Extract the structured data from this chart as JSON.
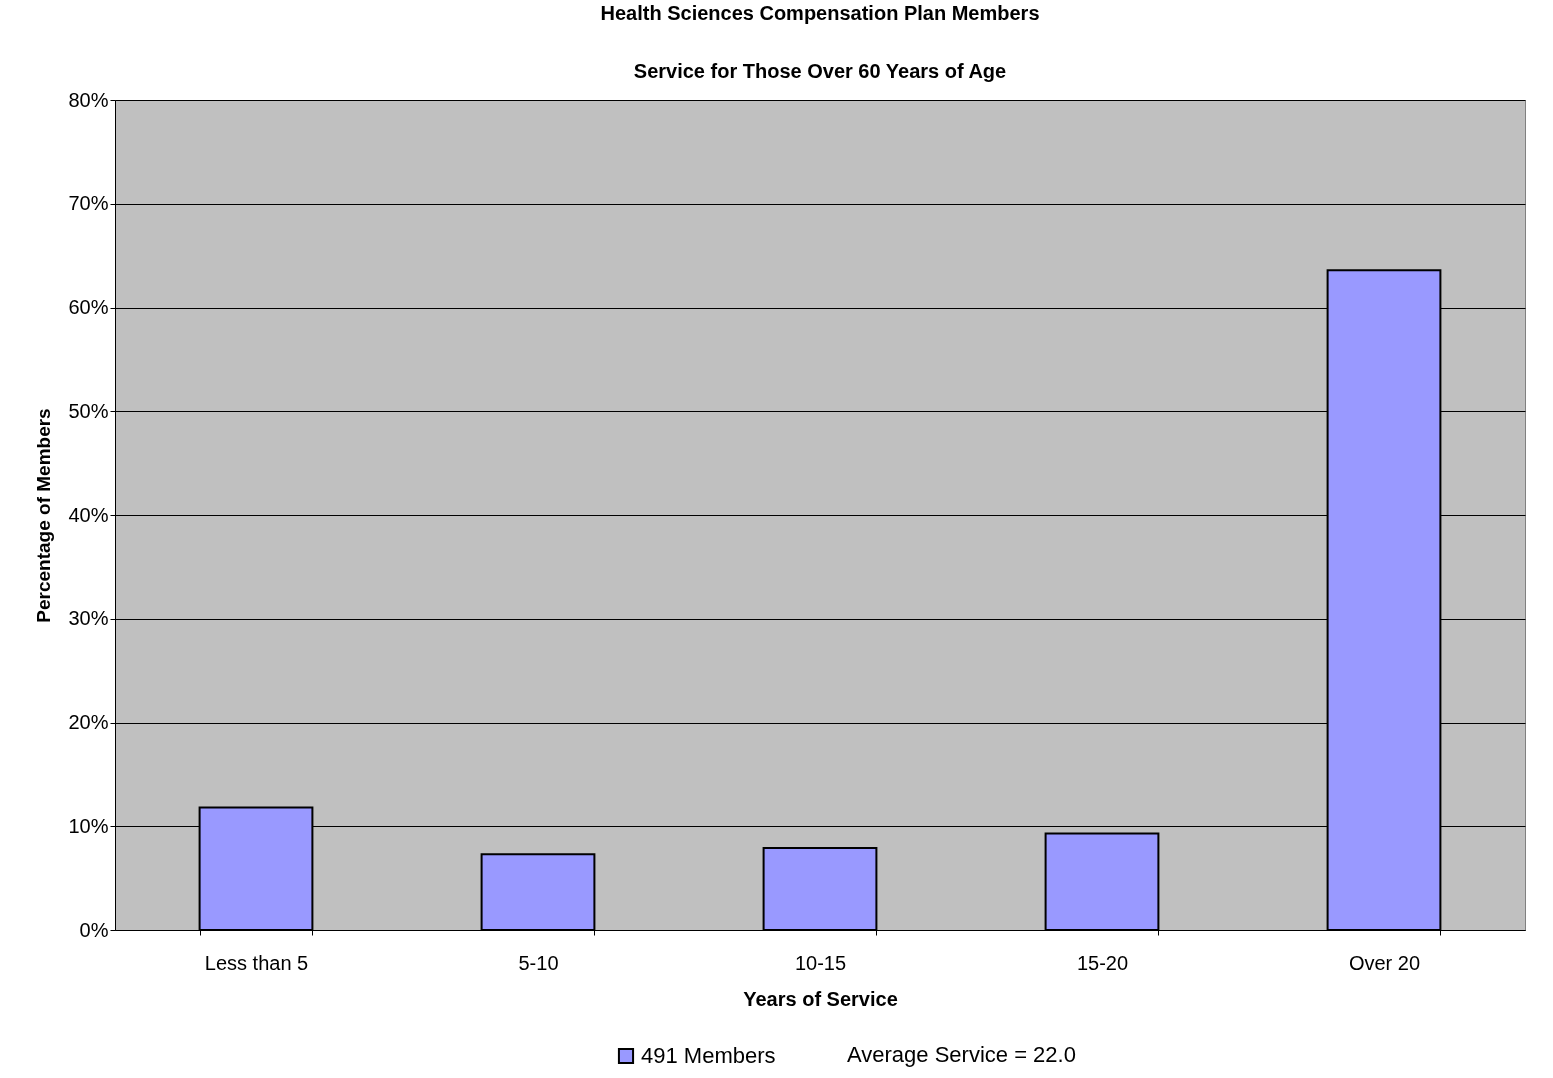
{
  "chart_data": {
    "type": "bar",
    "title": "Health Sciences Compensation Plan Members",
    "subtitle": "Service for Those Over 60 Years of Age",
    "xlabel": "Years of Service",
    "ylabel": "Percentage of Members",
    "categories": [
      "Less than 5",
      "5-10",
      "10-15",
      "15-20",
      "Over 20"
    ],
    "series": [
      {
        "name": "491 Members",
        "color": "#9999ff",
        "values": [
          11.8,
          7.3,
          7.9,
          9.3,
          63.6
        ]
      }
    ],
    "ylim": [
      0,
      80
    ],
    "yticks": [
      {
        "value": 0,
        "label": "0%"
      },
      {
        "value": 10,
        "label": "10%"
      },
      {
        "value": 20,
        "label": "20%"
      },
      {
        "value": 30,
        "label": "30%"
      },
      {
        "value": 40,
        "label": "40%"
      },
      {
        "value": 50,
        "label": "50%"
      },
      {
        "value": 60,
        "label": "60%"
      },
      {
        "value": 70,
        "label": "70%"
      },
      {
        "value": 80,
        "label": "80%"
      }
    ],
    "grid": "y",
    "legend": "bottom",
    "annotations": [
      "Average Service = 22.0"
    ]
  }
}
